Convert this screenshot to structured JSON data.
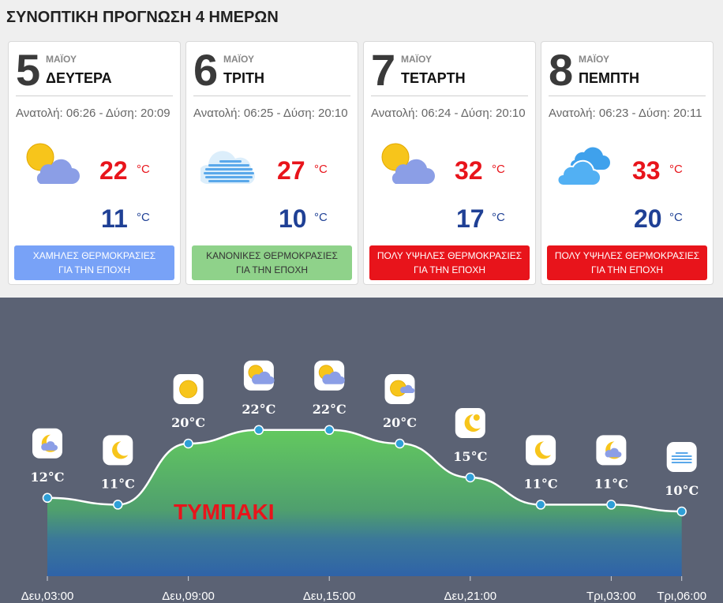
{
  "page_title": "ΣΥΝΟΠΤΙΚΗ ΠΡΟΓΝΩΣΗ 4 ΗΜΕΡΩΝ",
  "cards": [
    {
      "day": "5",
      "month": "ΜΑΪΟΥ",
      "weekday": "ΔΕΥΤΕΡΑ",
      "sun": "Ανατολή: 06:26 - Δύση: 20:09",
      "icon": "sun-cloud-icon",
      "tmax": "22",
      "tmin": "11",
      "unit": "°C",
      "badge_line1": "ΧΑΜΗΛΕΣ ΘΕΡΜΟΚΡΑΣΙΕΣ",
      "badge_line2": "ΓΙΑ ΤΗΝ ΕΠΟΧΗ",
      "badge_color": "#78a2f7"
    },
    {
      "day": "6",
      "month": "ΜΑΪΟΥ",
      "weekday": "ΤΡΙΤΗ",
      "sun": "Ανατολή: 06:25 - Δύση: 20:10",
      "icon": "haze-cloud-icon",
      "tmax": "27",
      "tmin": "10",
      "unit": "°C",
      "badge_line1": "ΚΑΝΟΝΙΚΕΣ ΘΕΡΜΟΚΡΑΣΙΕΣ",
      "badge_line2": "ΓΙΑ ΤΗΝ ΕΠΟΧΗ",
      "badge_color": "#8fd28a",
      "badge_text_color": "#333333"
    },
    {
      "day": "7",
      "month": "ΜΑΪΟΥ",
      "weekday": "ΤΕΤΑΡΤΗ",
      "sun": "Ανατολή: 06:24 - Δύση: 20:10",
      "icon": "sun-cloud-icon",
      "tmax": "32",
      "tmin": "17",
      "unit": "°C",
      "badge_line1": "ΠΟΛΥ ΥΨΗΛΕΣ ΘΕΡΜΟΚΡΑΣΙΕΣ",
      "badge_line2": "ΓΙΑ ΤΗΝ ΕΠΟΧΗ",
      "badge_color": "#e8141b"
    },
    {
      "day": "8",
      "month": "ΜΑΪΟΥ",
      "weekday": "ΠΕΜΠΤΗ",
      "sun": "Ανατολή: 06:23 - Δύση: 20:11",
      "icon": "cloudy-icon",
      "tmax": "33",
      "tmin": "20",
      "unit": "°C",
      "badge_line1": "ΠΟΛΥ ΥΨΗΛΕΣ ΘΕΡΜΟΚΡΑΣΙΕΣ",
      "badge_line2": "ΓΙΑ ΤΗΝ ΕΠΟΧΗ",
      "badge_color": "#e8141b"
    }
  ],
  "chart_data": {
    "type": "area",
    "title": "ΤΥΜΠΑΚΙ",
    "ylim": [
      0,
      33
    ],
    "points": [
      {
        "x": 0,
        "temp": 12,
        "label": "12°C",
        "icon": "moon-cloud-icon"
      },
      {
        "x": 1,
        "temp": 11,
        "label": "11°C",
        "icon": "moon-icon"
      },
      {
        "x": 2,
        "temp": 20,
        "label": "20°C",
        "icon": "sun-icon"
      },
      {
        "x": 3,
        "temp": 22,
        "label": "22°C",
        "icon": "sun-cloud-icon"
      },
      {
        "x": 4,
        "temp": 22,
        "label": "22°C",
        "icon": "sun-cloud-icon"
      },
      {
        "x": 5,
        "temp": 20,
        "label": "20°C",
        "icon": "sun-small-cloud-icon"
      },
      {
        "x": 6,
        "temp": 15,
        "label": "15°C",
        "icon": "moon-sun-icon"
      },
      {
        "x": 7,
        "temp": 11,
        "label": "11°C",
        "icon": "moon-icon"
      },
      {
        "x": 8,
        "temp": 11,
        "label": "11°C",
        "icon": "moon-cloud-icon"
      },
      {
        "x": 9,
        "temp": 10,
        "label": "10°C",
        "icon": "haze-cloud-icon"
      }
    ],
    "x_ticks": [
      {
        "x": 0,
        "label": "Δευ,03:00"
      },
      {
        "x": 2,
        "label": "Δευ,09:00"
      },
      {
        "x": 4,
        "label": "Δευ,15:00"
      },
      {
        "x": 6,
        "label": "Δευ,21:00"
      },
      {
        "x": 8,
        "label": "Τρι,03:00"
      },
      {
        "x": 9,
        "label": "Τρι,06:00"
      }
    ]
  }
}
